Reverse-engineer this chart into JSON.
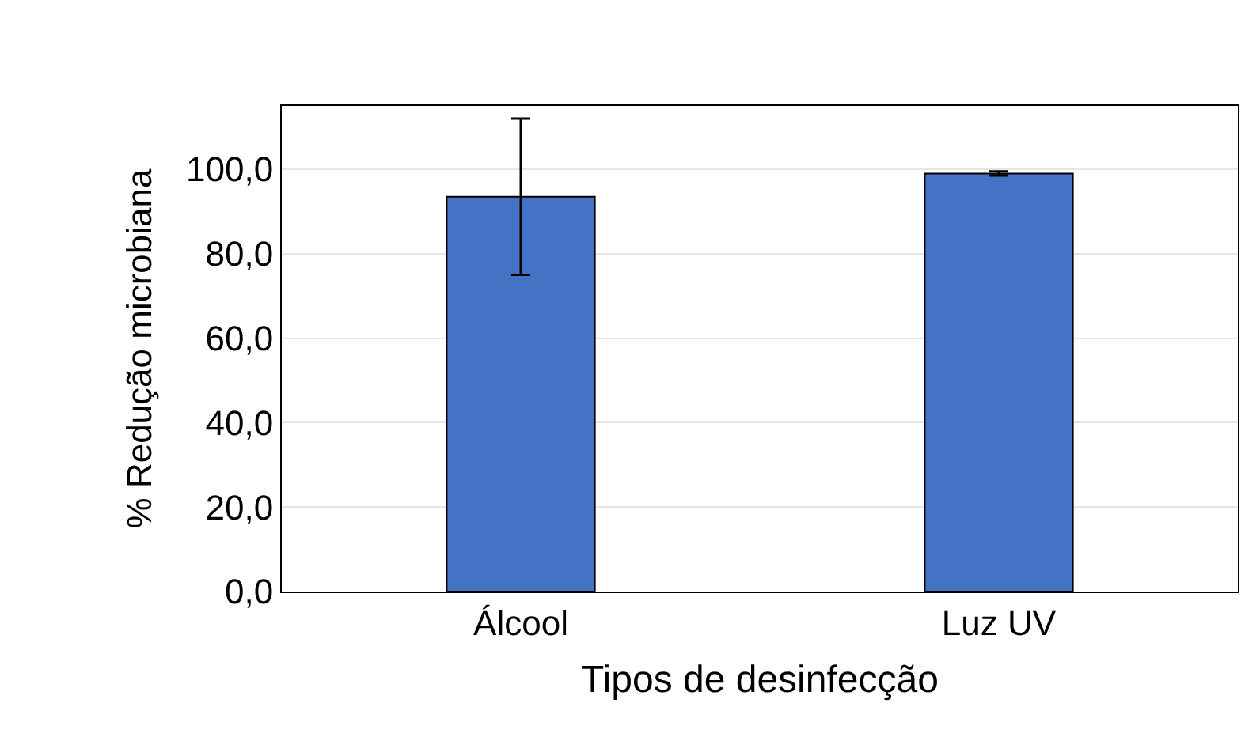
{
  "chart_data": {
    "type": "bar",
    "xlabel": "Tipos de desinfecção",
    "ylabel": "% Redução microbiana",
    "categories": [
      "Álcool",
      "Luz UV"
    ],
    "values": [
      93.5,
      99.0
    ],
    "errors": [
      18.5,
      0.5
    ],
    "color": "#4472c4",
    "ylim": [
      0,
      115
    ],
    "yticks": [
      {
        "value": 0,
        "label": "0,0"
      },
      {
        "value": 20,
        "label": "20,0"
      },
      {
        "value": 40,
        "label": "40,0"
      },
      {
        "value": 60,
        "label": "60,0"
      },
      {
        "value": 80,
        "label": "80,0"
      },
      {
        "value": 100,
        "label": "100,0"
      }
    ],
    "grid": "y"
  }
}
